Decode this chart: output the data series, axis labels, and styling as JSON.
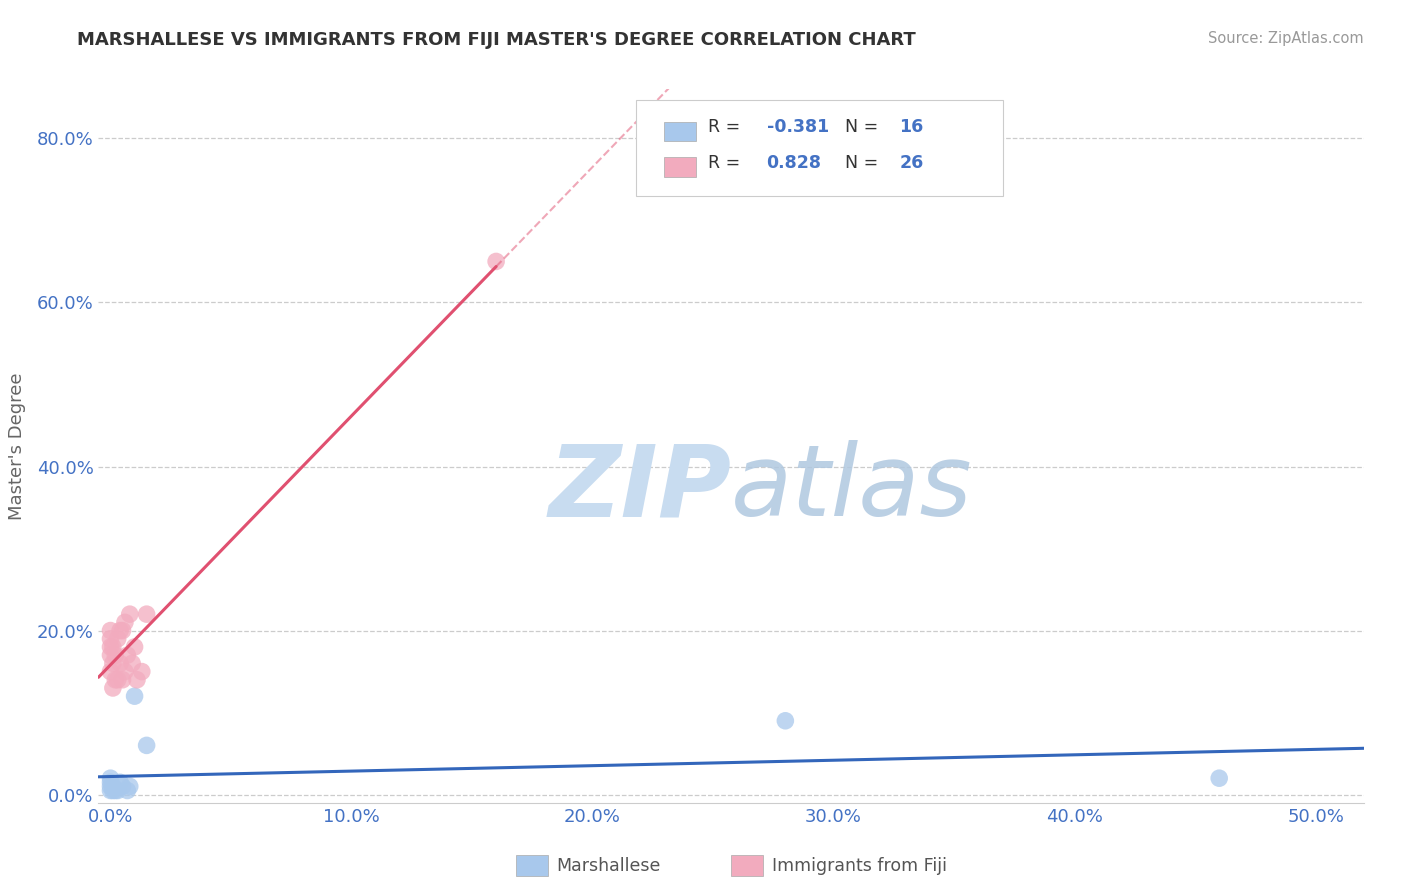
{
  "title": "MARSHALLESE VS IMMIGRANTS FROM FIJI MASTER'S DEGREE CORRELATION CHART",
  "source": "Source: ZipAtlas.com",
  "ylabel": "Master's Degree",
  "watermark_zip": "ZIP",
  "watermark_atlas": "atlas",
  "marshallese_color": "#A8C8EC",
  "fiji_color": "#F2ABBE",
  "trendline_marshallese_color": "#3366BB",
  "trendline_fiji_color": "#E05070",
  "grid_color": "#CCCCCC",
  "background_color": "#FFFFFF",
  "xlim": [
    -0.005,
    0.52
  ],
  "ylim": [
    -0.01,
    0.86
  ],
  "x_ticks": [
    0.0,
    0.1,
    0.2,
    0.3,
    0.4,
    0.5
  ],
  "y_ticks": [
    0.0,
    0.2,
    0.4,
    0.6,
    0.8
  ],
  "legend_r1": "R = -0.381",
  "legend_n1": "N = 16",
  "legend_r2": "R =  0.828",
  "legend_n2": "N = 26",
  "marshallese_x": [
    0.0,
    0.0,
    0.0,
    0.0,
    0.001,
    0.001,
    0.002,
    0.003,
    0.004,
    0.005,
    0.007,
    0.008,
    0.01,
    0.015,
    0.28,
    0.46
  ],
  "marshallese_y": [
    0.015,
    0.01,
    0.005,
    0.02,
    0.005,
    0.01,
    0.005,
    0.005,
    0.015,
    0.01,
    0.005,
    0.01,
    0.12,
    0.06,
    0.09,
    0.02
  ],
  "fiji_x": [
    0.0,
    0.0,
    0.0,
    0.0,
    0.0,
    0.001,
    0.001,
    0.001,
    0.002,
    0.002,
    0.003,
    0.003,
    0.004,
    0.004,
    0.005,
    0.005,
    0.006,
    0.006,
    0.007,
    0.008,
    0.009,
    0.01,
    0.011,
    0.013,
    0.015,
    0.16
  ],
  "fiji_y": [
    0.15,
    0.17,
    0.18,
    0.19,
    0.2,
    0.13,
    0.16,
    0.18,
    0.14,
    0.17,
    0.14,
    0.19,
    0.16,
    0.2,
    0.14,
    0.2,
    0.15,
    0.21,
    0.17,
    0.22,
    0.16,
    0.18,
    0.14,
    0.15,
    0.22,
    0.65
  ]
}
